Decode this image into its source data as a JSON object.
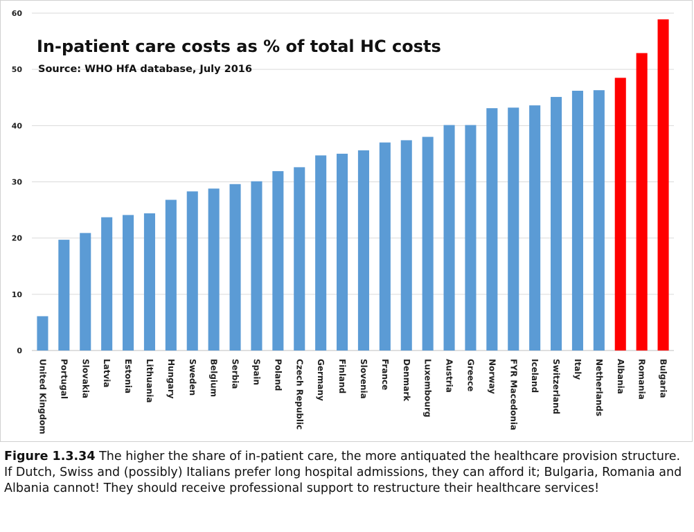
{
  "chart_data": {
    "type": "bar",
    "title": "In-patient care costs as % of total HC costs",
    "subtitle": "Source: WHO HfA database, July 2016",
    "ylim": [
      0,
      60
    ],
    "yticks": [
      0,
      10,
      20,
      30,
      40,
      50,
      60
    ],
    "grid": true,
    "categories": [
      "United Kingdom",
      "Portugal",
      "Slovakia",
      "Latvia",
      "Estonia",
      "Lithuania",
      "Hungary",
      "Sweden",
      "Belgium",
      "Serbia",
      "Spain",
      "Poland",
      "Czech Republic",
      "Germany",
      "Finland",
      "Slovenia",
      "France",
      "Denmark",
      "Luxembourg",
      "Austria",
      "Greece",
      "Norway",
      "FYR Macedonia",
      "Iceland",
      "Switzerland",
      "Italy",
      "Netherlands",
      "Albania",
      "Romania",
      "Bulgaria"
    ],
    "values": [
      6.1,
      19.7,
      20.9,
      23.7,
      24.1,
      24.4,
      26.8,
      28.3,
      28.8,
      29.6,
      30.1,
      31.9,
      32.6,
      34.7,
      35.0,
      35.6,
      37.0,
      37.4,
      38.0,
      40.1,
      40.1,
      43.1,
      43.2,
      43.6,
      45.1,
      46.2,
      46.3,
      48.5,
      52.9,
      58.9
    ],
    "highlight": [
      "Albania",
      "Romania",
      "Bulgaria"
    ],
    "colors": {
      "default": "#5b9bd5",
      "highlight": "#ff0000",
      "grid": "#d9d9d9"
    }
  },
  "caption": {
    "label": "Figure 1.3.34",
    "text": " The higher the share of in-patient care, the more antiquated the healthcare provision structure. If Dutch, Swiss and (possibly) Italians prefer long hospital admissions, they can afford it; Bulgaria, Romania and Albania cannot! They should receive professional support to restructure their healthcare services!"
  }
}
